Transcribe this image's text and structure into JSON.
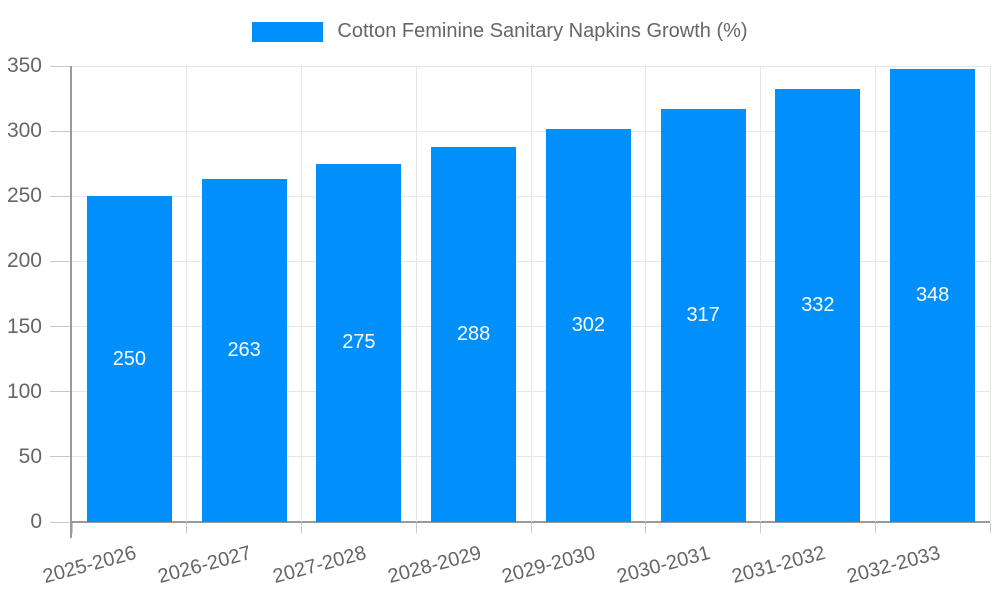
{
  "chart_data": {
    "type": "bar",
    "title": "Cotton Feminine Sanitary Napkins Growth (%)",
    "categories": [
      "2025-2026",
      "2026-2027",
      "2027-2028",
      "2028-2029",
      "2029-2030",
      "2030-2031",
      "2031-2032",
      "2032-2033"
    ],
    "values": [
      250,
      263,
      275,
      288,
      302,
      317,
      332,
      348
    ],
    "xlabel": "",
    "ylabel": "",
    "ylim": [
      0,
      350
    ],
    "yticks": [
      0,
      50,
      100,
      150,
      200,
      250,
      300,
      350
    ],
    "grid": true,
    "legend_position": "top-center",
    "value_labels": "centered-inside-bars-white",
    "bar_color": "#0190fb",
    "value_label_color": "#ffffff",
    "axis_color": "#9a9a9a",
    "grid_color": "#e6e6e6",
    "tick_color": "#c8c8c8",
    "text_color": "#666666"
  }
}
